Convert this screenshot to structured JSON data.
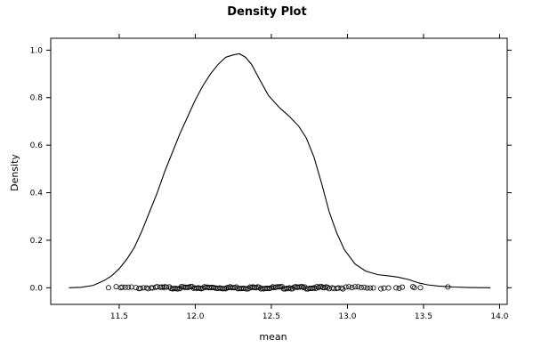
{
  "chart_data": {
    "type": "line",
    "title": "Density Plot",
    "xlabel": "mean",
    "ylabel": "Density",
    "xlim": [
      11.05,
      14.05
    ],
    "ylim": [
      -0.07,
      1.05
    ],
    "x_ticks": [
      11.5,
      12.0,
      12.5,
      13.0,
      13.5,
      14.0
    ],
    "x_tick_labels": [
      "11.5",
      "12.0",
      "12.5",
      "13.0",
      "13.5",
      "14.0"
    ],
    "y_ticks": [
      0.0,
      0.2,
      0.4,
      0.6,
      0.8,
      1.0
    ],
    "y_tick_labels": [
      "0.0",
      "0.2",
      "0.4",
      "0.6",
      "0.8",
      "1.0"
    ],
    "grid": false,
    "series": [
      {
        "type": "line",
        "x": [
          11.17,
          11.25,
          11.33,
          11.4,
          11.45,
          11.5,
          11.55,
          11.6,
          11.65,
          11.7,
          11.75,
          11.8,
          11.85,
          11.9,
          11.95,
          12.0,
          12.05,
          12.1,
          12.15,
          12.2,
          12.25,
          12.29,
          12.33,
          12.37,
          12.42,
          12.48,
          12.55,
          12.62,
          12.68,
          12.73,
          12.78,
          12.83,
          12.88,
          12.93,
          12.98,
          13.05,
          13.12,
          13.2,
          13.27,
          13.33,
          13.4,
          13.47,
          13.53,
          13.6,
          13.7,
          13.8,
          13.94
        ],
        "y": [
          0.0,
          0.002,
          0.01,
          0.03,
          0.05,
          0.08,
          0.12,
          0.17,
          0.24,
          0.32,
          0.4,
          0.49,
          0.57,
          0.65,
          0.72,
          0.79,
          0.85,
          0.9,
          0.94,
          0.97,
          0.98,
          0.985,
          0.97,
          0.94,
          0.88,
          0.81,
          0.76,
          0.72,
          0.68,
          0.63,
          0.55,
          0.44,
          0.32,
          0.23,
          0.16,
          0.1,
          0.07,
          0.055,
          0.05,
          0.045,
          0.035,
          0.02,
          0.012,
          0.007,
          0.003,
          0.001,
          0.0
        ]
      },
      {
        "type": "scatter",
        "y_jitter": 0.005,
        "x": [
          11.43,
          11.48,
          11.51,
          11.52,
          11.54,
          11.56,
          11.58,
          11.61,
          11.63,
          11.64,
          11.66,
          11.68,
          11.69,
          11.71,
          11.72,
          11.74,
          11.75,
          11.77,
          11.78,
          11.79,
          11.8,
          11.81,
          11.83,
          11.84,
          11.85,
          11.86,
          11.87,
          11.88,
          11.89,
          11.9,
          11.91,
          11.92,
          11.93,
          11.94,
          11.95,
          11.96,
          11.97,
          11.98,
          11.99,
          12.0,
          12.01,
          12.02,
          12.03,
          12.04,
          12.05,
          12.06,
          12.07,
          12.08,
          12.09,
          12.1,
          12.11,
          12.12,
          12.13,
          12.14,
          12.15,
          12.16,
          12.17,
          12.18,
          12.19,
          12.2,
          12.21,
          12.22,
          12.23,
          12.24,
          12.25,
          12.26,
          12.27,
          12.28,
          12.29,
          12.3,
          12.31,
          12.32,
          12.33,
          12.34,
          12.35,
          12.36,
          12.37,
          12.38,
          12.39,
          12.4,
          12.41,
          12.42,
          12.43,
          12.44,
          12.45,
          12.46,
          12.47,
          12.48,
          12.49,
          12.5,
          12.51,
          12.52,
          12.53,
          12.54,
          12.55,
          12.56,
          12.57,
          12.58,
          12.59,
          12.6,
          12.61,
          12.62,
          12.63,
          12.64,
          12.65,
          12.66,
          12.67,
          12.68,
          12.69,
          12.7,
          12.71,
          12.72,
          12.73,
          12.74,
          12.75,
          12.76,
          12.77,
          12.78,
          12.79,
          12.8,
          12.81,
          12.82,
          12.83,
          12.84,
          12.85,
          12.86,
          12.87,
          12.88,
          12.9,
          12.91,
          12.93,
          12.94,
          12.96,
          12.97,
          12.99,
          13.01,
          13.03,
          13.05,
          13.07,
          13.09,
          13.11,
          13.13,
          13.15,
          13.17,
          13.22,
          13.24,
          13.27,
          13.32,
          13.34,
          13.36,
          13.43,
          13.44,
          13.48,
          13.66
        ]
      }
    ]
  }
}
